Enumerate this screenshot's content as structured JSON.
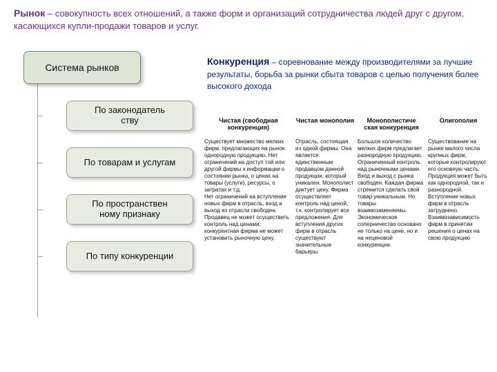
{
  "colors": {
    "purple": "#6f2a8f",
    "navy": "#0a2a78",
    "box_fill_root": "#dee6d6",
    "box_fill_child": "#e8ece0",
    "box_border": "#7a846e",
    "connector": "#9a9a9a",
    "bg": "#ffffff"
  },
  "title": {
    "keyword": "Рынок",
    "rest": " – совокупность всех отношений, а также форм и организаций сотрудничества людей друг с другом, касающихся купли-продажи товаров и услуг."
  },
  "subtitle": {
    "keyword": "Конкуренция",
    "rest": " – соревнование между производителями за лучшие результаты, борьба за рынки сбыта товаров с целью получения более высокого дохода"
  },
  "tree": {
    "root": "Система рынков",
    "children": [
      "По законодатель\nству",
      "По товарам и услугам",
      "По пространствен\nному признаку",
      "По типу конкуренции"
    ]
  },
  "table": {
    "headers": [
      "Чистая (свободная конкуренция)",
      "Чистая монополия",
      "Монополистиче\nская конкуренция",
      "Олигополия"
    ],
    "cells": [
      "Существует множество мелких фирм, предлагающих на рынок однородную продукцию. Нет ограничений на доступ той или другой фирмы к информации о состоянии рынка, о ценах на товары (услуги), ресурсы, о затратах и т.д.\nНет ограничений на вступление новых фирм в отрасль, вход и выход из отрасли свободен. Продавец не может осуществить контроль над ценами, конкурентная фирма не может установить рыночную цену.",
      "Отрасль, состоящая из одной фирмы. Она является единственным продавцом данной продукции, который уникален. Монополист диктует цену. Фирма осуществляет контроль над ценой, т.к. контролирует все предложения. Для вступления других фирм в отрасль существуют значительные барьеры.",
      "Большое количество мелких фирм предлагает разнородную продукцию. Ограниченный контроль над рыночными ценами. Вход и выход с рынка свободен. Каждая фирма стремится сделать свой товар уникальным. Но товары взаимозаменяемы. Экономическое соперничество основано не только на цене, но и на неценовой конкуренции.",
      "Существование на рынке малого числа крупных фирм, которые контролируют его основную часть. Продукция может быть как однородной, так и разнородной. Вступление новых фирм в отрасль затруднено. Взаимозависимость фирм в принятии решения о ценах на свою продукцию"
    ]
  }
}
